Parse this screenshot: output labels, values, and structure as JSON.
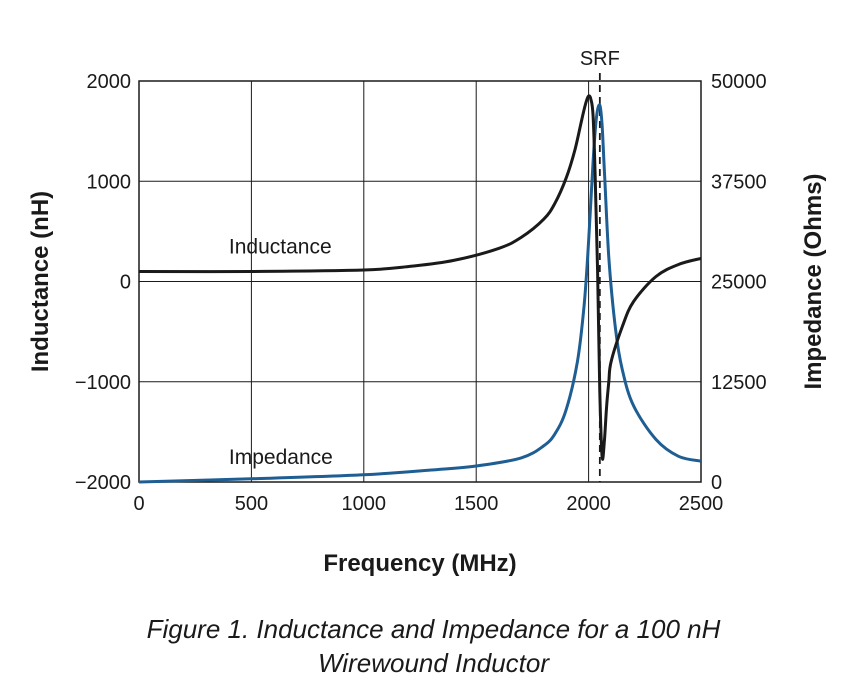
{
  "chart_data": {
    "type": "line",
    "xlabel": "Frequency (MHz)",
    "ylabel_left": "Inductance (nH)",
    "ylabel_right": "Impedance (Ohms)",
    "xlim": [
      0,
      2500
    ],
    "ylim_left": [
      -2000,
      2000
    ],
    "ylim_right": [
      0,
      50000
    ],
    "x_ticks": [
      "0",
      "500",
      "1000",
      "1500",
      "2000",
      "2500"
    ],
    "y_ticks_left": [
      "2000",
      "1000",
      "0",
      "−1000",
      "−2000"
    ],
    "y_ticks_right": [
      "50000",
      "37500",
      "25000",
      "12500",
      "0"
    ],
    "grid": true,
    "srf_label": "SRF",
    "srf_x": 2050,
    "series": [
      {
        "name": "Inductance",
        "axis": "left",
        "color": "#1a1a1a",
        "x": [
          0,
          500,
          1000,
          1200,
          1400,
          1600,
          1700,
          1800,
          1850,
          1900,
          1940,
          1970,
          1990,
          2000,
          2010,
          2020,
          2030,
          2040,
          2050,
          2060,
          2070,
          2080,
          2090,
          2100,
          2150,
          2200,
          2300,
          2400,
          2500
        ],
        "y": [
          100,
          100,
          115,
          150,
          210,
          330,
          440,
          620,
          780,
          1030,
          1320,
          1620,
          1800,
          1850,
          1820,
          1650,
          1000,
          100,
          -1100,
          -1750,
          -1600,
          -1250,
          -1000,
          -800,
          -450,
          -200,
          50,
          170,
          230
        ]
      },
      {
        "name": "Impedance",
        "axis": "right",
        "color": "#1f5e92",
        "x": [
          0,
          500,
          1000,
          1300,
          1500,
          1700,
          1800,
          1850,
          1900,
          1950,
          1980,
          2000,
          2020,
          2035,
          2050,
          2060,
          2070,
          2090,
          2120,
          2150,
          2200,
          2300,
          2400,
          2500
        ],
        "y": [
          0,
          400,
          900,
          1500,
          2000,
          3000,
          4500,
          6000,
          9000,
          15000,
          22000,
          30000,
          40000,
          45500,
          47000,
          44500,
          39000,
          28000,
          19000,
          14000,
          9500,
          5300,
          3200,
          2600
        ]
      }
    ]
  },
  "caption": {
    "line1": "Figure 1. Inductance and Impedance for a 100 nH",
    "line2": "Wirewound Inductor"
  }
}
